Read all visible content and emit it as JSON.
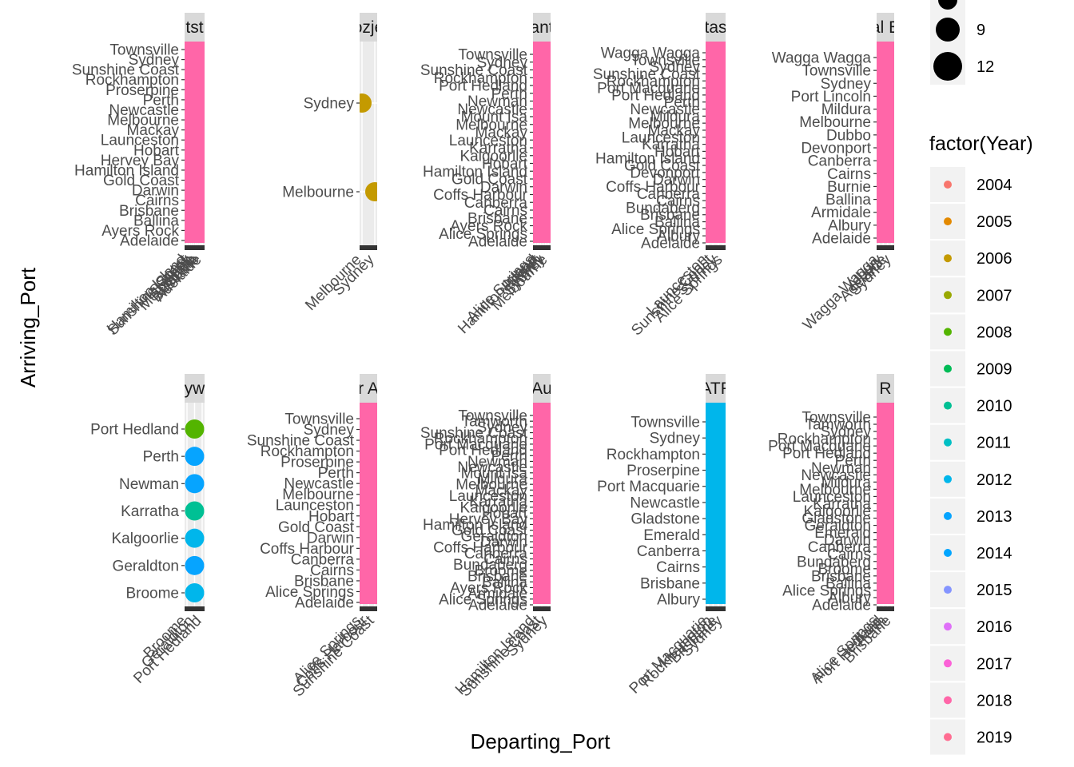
{
  "chart_data": {
    "type": "scatter",
    "x_title": "Departing_Port",
    "y_title": "Arriving_Port",
    "legend_color_title": "factor(Year)",
    "legend_size_values": [
      "9",
      "12"
    ],
    "years": [
      "2004",
      "2005",
      "2006",
      "2007",
      "2008",
      "2009",
      "2010",
      "2011",
      "2012",
      "2013",
      "2014",
      "2015",
      "2016",
      "2017",
      "2018",
      "2019"
    ],
    "year_colors": [
      "#F8766D",
      "#E38900",
      "#C49A00",
      "#99A800",
      "#53B400",
      "#00BC56",
      "#00C094",
      "#00BFC4",
      "#00B6EB",
      "#06A4FF",
      "#00A5FF",
      "#8494FF",
      "#DF70F8",
      "#FB61D7",
      "#FF66A8",
      "#FF6C91"
    ],
    "panels": [
      {
        "strip": "tst",
        "y_ticks": [
          "Townsville",
          "Sydney",
          "Sunshine Coast",
          "Rockhampton",
          "Proserpine",
          "Perth",
          "Newcastle",
          "Melbourne",
          "Mackay",
          "Launceston",
          "Hobart",
          "Hervey Bay",
          "Hamilton Island",
          "Gold Coast",
          "Darwin",
          "Cairns",
          "Brisbane",
          "Ballina",
          "Ayers Rock",
          "Adelaide"
        ],
        "x_ticks": [
          "Hamilton Island",
          "Sunshine Coast",
          "Sydney",
          "Perth",
          "Melbourne",
          "Darwin",
          "Brisbane",
          "Adelaide"
        ],
        "fill_color": "#FF66A8",
        "points": []
      },
      {
        "strip": "ozje",
        "y_ticks": [
          "Sydney",
          "Melbourne"
        ],
        "x_ticks": [
          "Melbourne",
          "Sydney"
        ],
        "fill_color": null,
        "points": [
          {
            "x": "Melbourne",
            "y": "Sydney",
            "year": "2006"
          },
          {
            "x": "Sydney",
            "y": "Melbourne",
            "year": "2006"
          }
        ]
      },
      {
        "strip": "ant",
        "y_ticks": [
          "Townsville",
          "Sydney",
          "Sunshine Coast",
          "Rockhampton",
          "Port Hedland",
          "Perth",
          "Newman",
          "Newcastle",
          "Mount Isa",
          "Melbourne",
          "Mackay",
          "Launceston",
          "Karratha",
          "Kalgoorlie",
          "Hobart",
          "Hamilton Island",
          "Gold Coast",
          "Darwin",
          "Coffs Harbour",
          "Canberra",
          "Cairns",
          "Brisbane",
          "Ayers Rock",
          "Alice Springs",
          "Adelaide"
        ],
        "x_ticks": [
          "Alice Springs",
          "Hamilton Island",
          "Hobart",
          "Perth",
          "Sydney",
          "Melbourne"
        ],
        "fill_color": "#FF66A8",
        "points": []
      },
      {
        "strip": "tas",
        "y_ticks": [
          "Wagga Wagga",
          "Townsville",
          "Sydney",
          "Sunshine Coast",
          "Rockhampton",
          "Port Macquarie",
          "Port Hedland",
          "Perth",
          "Newcastle",
          "Mildura",
          "Melbourne",
          "Mackay",
          "Launceston",
          "Karratha",
          "Hobart",
          "Hamilton Island",
          "Gold Coast",
          "Devonport",
          "Darwin",
          "Coffs Harbour",
          "Canberra",
          "Cairns",
          "Bundaberg",
          "Brisbane",
          "Ballina",
          "Alice Springs",
          "Albury",
          "Adelaide"
        ],
        "x_ticks": [
          "Launceston",
          "Sunshine Coast",
          "Sydney",
          "Alice Springs"
        ],
        "fill_color": "#FF66A8",
        "points": []
      },
      {
        "strip": "al E",
        "y_ticks": [
          "Wagga Wagga",
          "Townsville",
          "Sydney",
          "Port Lincoln",
          "Mildura",
          "Melbourne",
          "Dubbo",
          "Devonport",
          "Canberra",
          "Cairns",
          "Burnie",
          "Ballina",
          "Armidale",
          "Albury",
          "Adelaide"
        ],
        "x_ticks": [
          "Wagga Wagga",
          "Albury",
          "Adelaide",
          "Sydney"
        ],
        "fill_color": "#FF66A8",
        "points": []
      },
      {
        "strip": "yw",
        "y_ticks": [
          "Port Hedland",
          "Perth",
          "Newman",
          "Karratha",
          "Kalgoorlie",
          "Geraldton",
          "Broome"
        ],
        "x_ticks": [
          "Broome",
          "Geraldton",
          "Port Hedland"
        ],
        "fill_color": null,
        "points": [
          {
            "x": "Perth",
            "y": "Port Hedland",
            "year": "2008"
          },
          {
            "x": "Perth",
            "y": "Perth",
            "year": "2013"
          },
          {
            "x": "Perth",
            "y": "Newman",
            "year": "2013"
          },
          {
            "x": "Perth",
            "y": "Karratha",
            "year": "2010"
          },
          {
            "x": "Perth",
            "y": "Kalgoorlie",
            "year": "2012"
          },
          {
            "x": "Perth",
            "y": "Geraldton",
            "year": "2013"
          },
          {
            "x": "Perth",
            "y": "Broome",
            "year": "2012"
          }
        ]
      },
      {
        "strip": "r A",
        "y_ticks": [
          "Townsville",
          "Sydney",
          "Sunshine Coast",
          "Rockhampton",
          "Proserpine",
          "Perth",
          "Newcastle",
          "Melbourne",
          "Launceston",
          "Hobart",
          "Gold Coast",
          "Darwin",
          "Coffs Harbour",
          "Canberra",
          "Cairns",
          "Brisbane",
          "Alice Springs",
          "Adelaide"
        ],
        "x_ticks": [
          "Alice Springs",
          "Coffs Harbour",
          "Sunshine Coast"
        ],
        "fill_color": "#FF66A8",
        "points": []
      },
      {
        "strip": "Au",
        "y_ticks": [
          "Townsville",
          "Tamworth",
          "Sydney",
          "Sunshine Coast",
          "Rockhampton",
          "Port Macquarie",
          "Port Hedland",
          "Perth",
          "Newman",
          "Newcastle",
          "Mount Isa",
          "Mildura",
          "Melbourne",
          "Mackay",
          "Launceston",
          "Karratha",
          "Kalgoorlie",
          "Hobart",
          "Hervey Bay",
          "Hamilton Island",
          "Gold Coast",
          "Geraldton",
          "Darwin",
          "Coffs Harbour",
          "Canberra",
          "Cairns",
          "Bundaberg",
          "Broome",
          "Brisbane",
          "Ballina",
          "Ayers Rock",
          "Armidale",
          "Alice Springs",
          "Adelaide"
        ],
        "x_ticks": [
          "Hamilton Island",
          "Sunshine Coast",
          "Sydney"
        ],
        "fill_color": "#FF66A8",
        "points": []
      },
      {
        "strip": "ATF",
        "y_ticks": [
          "Townsville",
          "Sydney",
          "Rockhampton",
          "Proserpine",
          "Port Macquarie",
          "Newcastle",
          "Gladstone",
          "Emerald",
          "Canberra",
          "Cairns",
          "Brisbane",
          "Albury"
        ],
        "x_ticks": [
          "Port Macquarie",
          "Rockhampton",
          "Brisbane",
          "Sydney"
        ],
        "fill_color": "#00B6EB",
        "points": []
      },
      {
        "strip": "R",
        "y_ticks": [
          "Townsville",
          "Tamworth",
          "Sydney",
          "Rockhampton",
          "Port Macquarie",
          "Port Hedland",
          "Perth",
          "Newman",
          "Newcastle",
          "Mildura",
          "Melbourne",
          "Launceston",
          "Karratha",
          "Kalgoorlie",
          "Gladstone",
          "Geraldton",
          "Emerald",
          "Darwin",
          "Canberra",
          "Cairns",
          "Bundaberg",
          "Broome",
          "Brisbane",
          "Ballina",
          "Alice Springs",
          "Albury",
          "Adelaide"
        ],
        "x_ticks": [
          "Alice Springs",
          "Port Hedland",
          "Perth",
          "Brisbane"
        ],
        "fill_color": "#FF66A8",
        "points": []
      }
    ]
  }
}
